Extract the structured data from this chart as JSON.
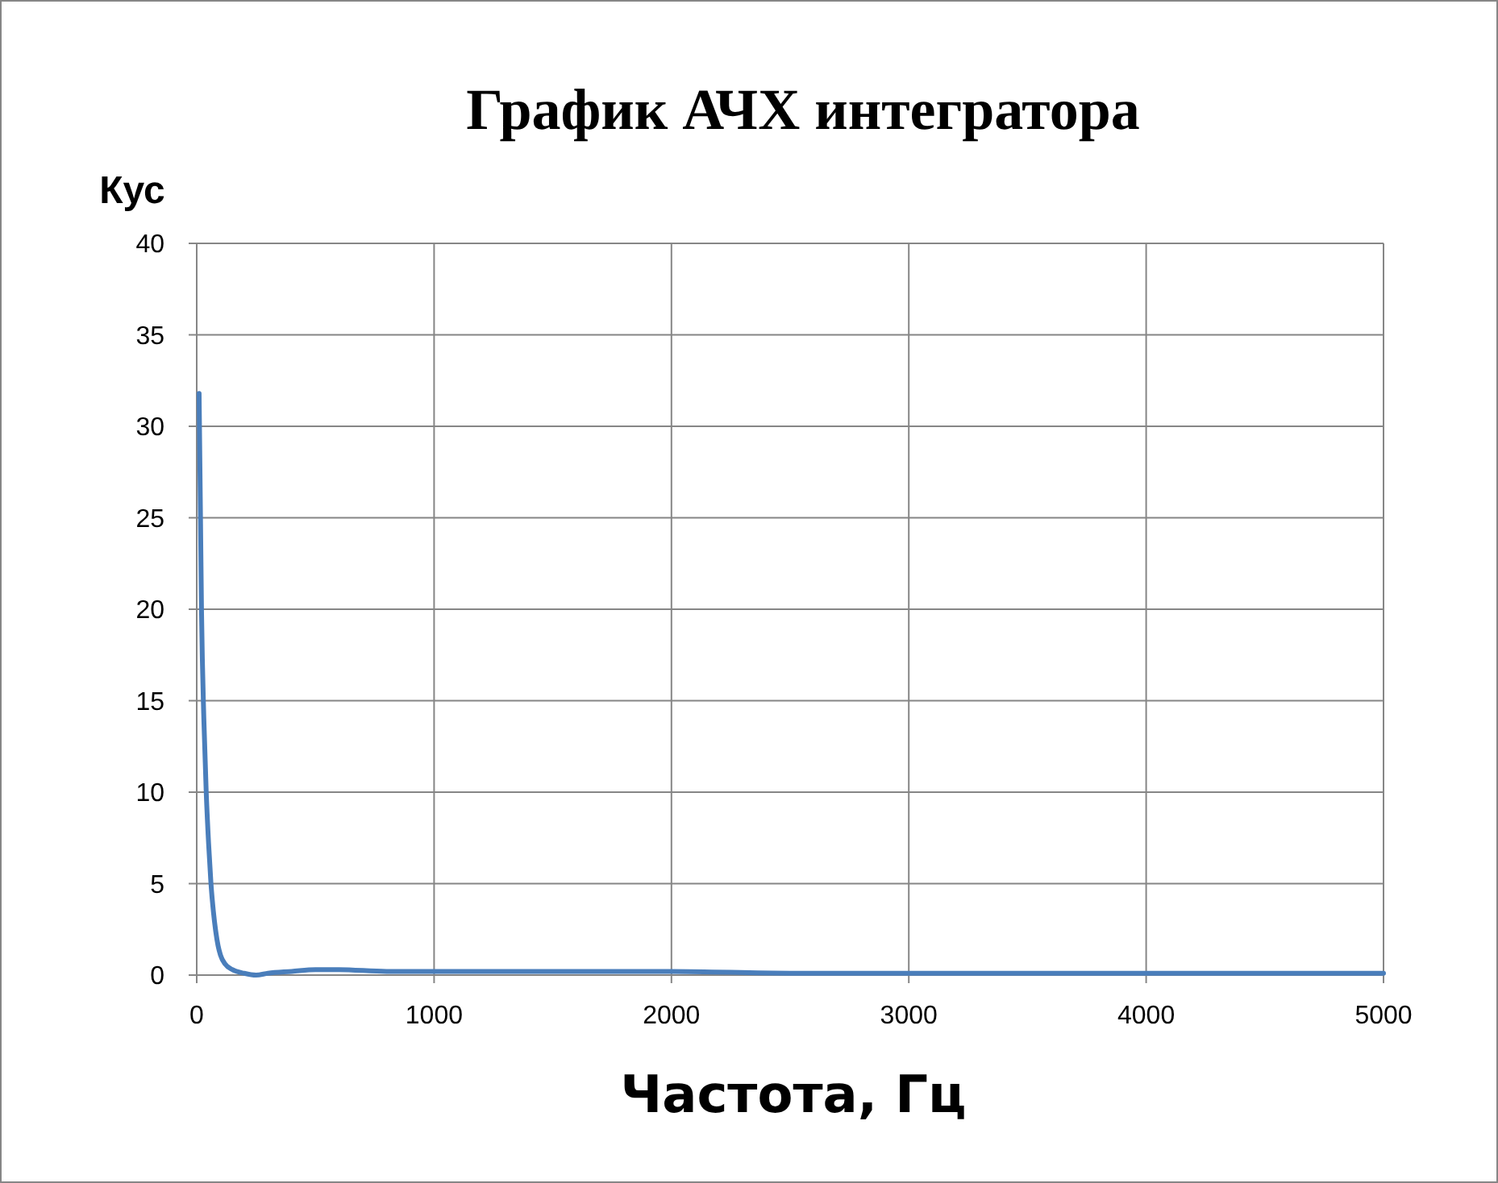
{
  "chart_data": {
    "type": "line",
    "title": "График АЧХ интегратора",
    "xlabel": "Частота, Гц",
    "ylabel": "Кус",
    "x": [
      10,
      15,
      20,
      30,
      40,
      50,
      60,
      70,
      80,
      90,
      100,
      120,
      150,
      200,
      250,
      300,
      400,
      500,
      600,
      800,
      1000,
      1500,
      2000,
      2500,
      3000,
      3500,
      4000,
      4500,
      5000
    ],
    "series": [
      {
        "color": "#4a7ebb",
        "values": [
          31.8,
          26,
          20.1,
          14,
          10,
          7.2,
          5,
          3.5,
          2.4,
          1.6,
          1.1,
          0.6,
          0.3,
          0.1,
          0,
          0.1,
          0.2,
          0.3,
          0.3,
          0.2,
          0.2,
          0.2,
          0.2,
          0.1,
          0.1,
          0.1,
          0.1,
          0.1,
          0.1
        ]
      }
    ],
    "xlim": [
      0,
      5000
    ],
    "xticks": [
      0,
      1000,
      2000,
      3000,
      4000,
      5000
    ],
    "ylim": [
      0,
      40
    ],
    "yticks": [
      0,
      5,
      10,
      15,
      20,
      25,
      30,
      35,
      40
    ],
    "grid": true,
    "line_style": "solid"
  }
}
